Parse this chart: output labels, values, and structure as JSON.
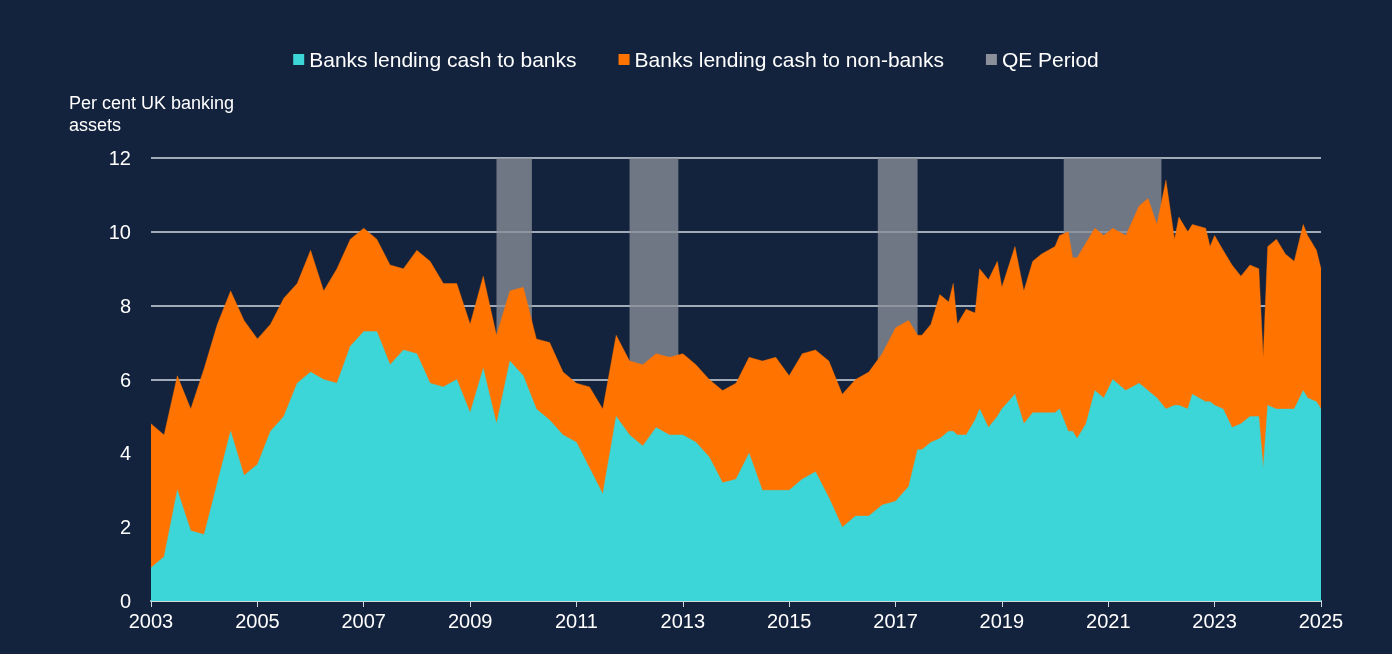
{
  "chart_data": {
    "type": "area",
    "stacked": true,
    "ylabel": "Per cent UK banking assets",
    "x": [
      "2003-01",
      "2003-04",
      "2003-07",
      "2003-10",
      "2004-01",
      "2004-04",
      "2004-07",
      "2004-10",
      "2005-01",
      "2005-04",
      "2005-07",
      "2005-10",
      "2006-01",
      "2006-04",
      "2006-07",
      "2006-10",
      "2007-01",
      "2007-04",
      "2007-07",
      "2007-10",
      "2008-01",
      "2008-04",
      "2008-07",
      "2008-10",
      "2009-01",
      "2009-04",
      "2009-07",
      "2009-10",
      "2010-01",
      "2010-04",
      "2010-07",
      "2010-10",
      "2011-01",
      "2011-04",
      "2011-07",
      "2011-10",
      "2012-01",
      "2012-04",
      "2012-07",
      "2012-10",
      "2013-01",
      "2013-04",
      "2013-07",
      "2013-10",
      "2014-01",
      "2014-04",
      "2014-07",
      "2014-10",
      "2015-01",
      "2015-04",
      "2015-07",
      "2015-10",
      "2016-01",
      "2016-04",
      "2016-07",
      "2016-10",
      "2017-01",
      "2017-04",
      "2017-06",
      "2017-07",
      "2017-09",
      "2017-11",
      "2018-01",
      "2018-02",
      "2018-03",
      "2018-05",
      "2018-07",
      "2018-08",
      "2018-10",
      "2018-12",
      "2019-01",
      "2019-04",
      "2019-06",
      "2019-08",
      "2019-10",
      "2020-01",
      "2020-02",
      "2020-04",
      "2020-05",
      "2020-06",
      "2020-08",
      "2020-10",
      "2020-12",
      "2021-02",
      "2021-05",
      "2021-08",
      "2021-10",
      "2021-12",
      "2022-02",
      "2022-04",
      "2022-05",
      "2022-07",
      "2022-08",
      "2022-11",
      "2022-12",
      "2023-01",
      "2023-03",
      "2023-05",
      "2023-07",
      "2023-09",
      "2023-11",
      "2023-12",
      "2024-01",
      "2024-03",
      "2024-05",
      "2024-07",
      "2024-09",
      "2024-10",
      "2024-12",
      "2025-01"
    ],
    "series": [
      {
        "name": "Banks lending cash to banks",
        "color": "#3dd6d8",
        "values": [
          0.9,
          1.2,
          3.0,
          1.9,
          1.8,
          3.2,
          4.6,
          3.4,
          3.7,
          4.6,
          5.0,
          5.9,
          6.2,
          6.0,
          5.9,
          6.9,
          7.3,
          7.3,
          6.4,
          6.8,
          6.7,
          5.9,
          5.8,
          6.0,
          5.1,
          6.3,
          4.8,
          6.5,
          6.1,
          5.2,
          4.9,
          4.5,
          4.3,
          3.6,
          2.9,
          5.0,
          4.5,
          4.2,
          4.7,
          4.5,
          4.5,
          4.3,
          3.9,
          3.2,
          3.3,
          4.0,
          3.0,
          3.0,
          3.0,
          3.3,
          3.5,
          2.8,
          2.0,
          2.3,
          2.3,
          2.6,
          2.7,
          3.1,
          4.1,
          4.1,
          4.3,
          4.4,
          4.6,
          4.6,
          4.5,
          4.5,
          4.9,
          5.2,
          4.7,
          5.0,
          5.2,
          5.6,
          4.8,
          5.1,
          5.1,
          5.1,
          5.2,
          4.6,
          4.6,
          4.4,
          4.8,
          5.7,
          5.5,
          6.0,
          5.7,
          5.9,
          5.7,
          5.5,
          5.2,
          5.3,
          5.3,
          5.2,
          5.6,
          5.4,
          5.4,
          5.3,
          5.2,
          4.7,
          4.8,
          5.0,
          5.0,
          3.6,
          5.3,
          5.2,
          5.2,
          5.2,
          5.7,
          5.5,
          5.4,
          5.2
        ]
      },
      {
        "name": "Banks lending cash to non-banks",
        "color": "#ff7300",
        "values": [
          3.9,
          3.3,
          3.1,
          3.3,
          4.5,
          4.3,
          3.8,
          4.2,
          3.4,
          2.9,
          3.2,
          2.7,
          3.3,
          2.4,
          3.1,
          2.9,
          2.8,
          2.5,
          2.7,
          2.2,
          2.8,
          3.3,
          2.8,
          2.6,
          2.4,
          2.5,
          2.4,
          1.9,
          2.4,
          1.9,
          2.1,
          1.7,
          1.6,
          2.2,
          2.3,
          2.2,
          2.0,
          2.2,
          2.0,
          2.1,
          2.2,
          2.1,
          2.1,
          2.5,
          2.6,
          2.6,
          3.5,
          3.6,
          3.1,
          3.4,
          3.3,
          3.7,
          3.6,
          3.7,
          3.9,
          4.1,
          4.7,
          4.5,
          3.1,
          3.1,
          3.2,
          3.9,
          3.5,
          4.0,
          3.0,
          3.4,
          2.9,
          3.8,
          4.0,
          4.2,
          3.3,
          4.0,
          3.6,
          4.1,
          4.3,
          4.5,
          4.7,
          5.4,
          4.7,
          4.9,
          4.9,
          4.4,
          4.4,
          4.1,
          4.2,
          4.8,
          5.2,
          4.7,
          6.2,
          4.5,
          5.1,
          4.8,
          4.6,
          4.7,
          4.2,
          4.6,
          4.3,
          4.4,
          4.0,
          4.1,
          4.0,
          3.0,
          4.3,
          4.6,
          4.2,
          4.0,
          4.5,
          4.4,
          4.1,
          3.8
        ]
      }
    ],
    "xlim": [
      "2003",
      "2025"
    ],
    "xticks": [
      {
        "value": "2003",
        "label": "2003"
      },
      {
        "value": "2005",
        "label": "2005"
      },
      {
        "value": "2007",
        "label": "2007"
      },
      {
        "value": "2009",
        "label": "2009"
      },
      {
        "value": "2011",
        "label": "2011"
      },
      {
        "value": "2013",
        "label": "2013"
      },
      {
        "value": "2015",
        "label": "2015"
      },
      {
        "value": "2017",
        "label": "2017"
      },
      {
        "value": "2019",
        "label": "2019"
      },
      {
        "value": "2021",
        "label": "2021"
      },
      {
        "value": "2023",
        "label": "2023"
      },
      {
        "value": "2025",
        "label": "2025"
      }
    ],
    "ylim": [
      0,
      12
    ],
    "yticks": [
      0,
      2,
      4,
      6,
      8,
      10,
      12
    ],
    "bands": [
      {
        "axis": "x",
        "from": "2009-07",
        "to": "2010-03",
        "label": "QE Period",
        "color": "#8a8f99"
      },
      {
        "axis": "x",
        "from": "2012-01",
        "to": "2012-12",
        "color": "#8a8f99"
      },
      {
        "axis": "x",
        "from": "2016-09",
        "to": "2017-06",
        "color": "#8a8f99"
      },
      {
        "axis": "x",
        "from": "2020-03",
        "to": "2022-01",
        "color": "#8a8f99"
      }
    ],
    "grid": "y",
    "legend": "top",
    "marker": "none"
  }
}
